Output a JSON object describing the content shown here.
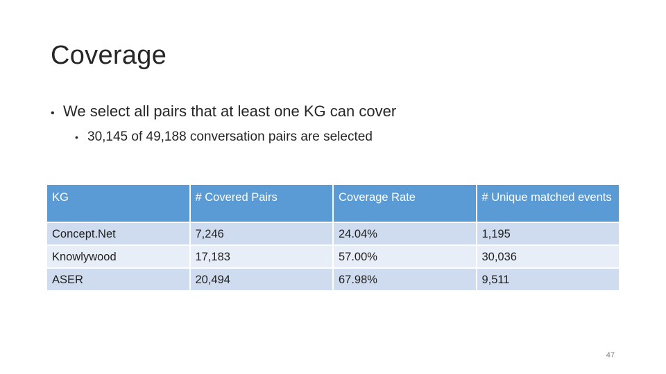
{
  "slide": {
    "title": "Coverage",
    "bullets": [
      {
        "text": "We select all pairs that at least one KG can cover"
      },
      {
        "text": "30,145 of 49,188 conversation pairs are selected"
      }
    ],
    "page_number": "47"
  },
  "table": {
    "headers": [
      "KG",
      "# Covered Pairs",
      "Coverage Rate",
      "# Unique matched events"
    ],
    "rows": [
      [
        "Concept.Net",
        "7,246",
        "24.04%",
        "1,195"
      ],
      [
        "Knowlywood",
        "17,183",
        "57.00%",
        "30,036"
      ],
      [
        "ASER",
        "20,494",
        "67.98%",
        "9,511"
      ]
    ]
  },
  "colors": {
    "header_bg": "#5b9bd5",
    "row_odd_bg": "#cfdcef",
    "row_even_bg": "#e8eef7"
  }
}
